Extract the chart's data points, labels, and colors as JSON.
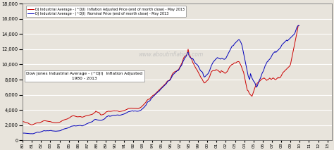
{
  "title_annotation": "Dow Jones Industrial Average - (^DJI)  Inflation Adjusted\n1980 - 2013",
  "watermark": "www.aboutinflation.com",
  "legend_red": "DJ Industrial Average - (^DJI)  Inflation Adjusted Price (end of month close) - May 2013",
  "legend_blue": "DJ Industrial Average - (^DJI)  Nominal Price (end of month close) - May 2013",
  "line_red": "#cc0000",
  "line_blue": "#0000bb",
  "bg_color": "#e8e4dc",
  "ylim": [
    0,
    18000
  ],
  "yticks": [
    0,
    2000,
    4000,
    6000,
    8000,
    10000,
    12000,
    14000,
    16000,
    18000
  ],
  "xlim_start": 1980.0,
  "xlim_end": 2013.5,
  "nominal_monthly": [
    963,
    944,
    950,
    940,
    935,
    921,
    910,
    900,
    880,
    875,
    870,
    875,
    875,
    860,
    880,
    920,
    960,
    1010,
    1040,
    1070,
    1080,
    1047,
    1060,
    1100,
    1130,
    1160,
    1200,
    1250,
    1270,
    1259,
    1240,
    1260,
    1270,
    1250,
    1260,
    1280,
    1290,
    1300,
    1250,
    1240,
    1230,
    1220,
    1210,
    1200,
    1210,
    1212,
    1220,
    1230,
    1250,
    1280,
    1310,
    1390,
    1430,
    1470,
    1500,
    1520,
    1547,
    1580,
    1600,
    1650,
    1680,
    1730,
    1780,
    1850,
    1870,
    1896,
    1910,
    1920,
    1900,
    1890,
    1900,
    1910,
    1930,
    1950,
    1960,
    1970,
    1939,
    1900,
    1920,
    1960,
    1990,
    2040,
    2100,
    2169,
    2200,
    2250,
    2300,
    2350,
    2380,
    2410,
    2440,
    2500,
    2600,
    2700,
    2750,
    2753,
    2720,
    2690,
    2680,
    2650,
    2640,
    2634,
    2640,
    2660,
    2700,
    2750,
    2800,
    2880,
    3000,
    3100,
    3150,
    3200,
    3250,
    3169,
    3180,
    3200,
    3250,
    3280,
    3300,
    3310,
    3280,
    3310,
    3330,
    3340,
    3350,
    3301,
    3310,
    3320,
    3350,
    3380,
    3400,
    3450,
    3480,
    3520,
    3580,
    3630,
    3680,
    3754,
    3780,
    3800,
    3840,
    3860,
    3880,
    3900,
    3840,
    3860,
    3880,
    3860,
    3840,
    3834,
    3840,
    3860,
    3900,
    3950,
    4000,
    4100,
    4180,
    4280,
    4380,
    4500,
    4600,
    4800,
    5000,
    5100,
    5117,
    5200,
    5300,
    5500,
    5600,
    5700,
    5800,
    5900,
    6000,
    6100,
    6200,
    6300,
    6400,
    6448,
    6550,
    6700,
    6800,
    6900,
    7000,
    7100,
    7200,
    7300,
    7400,
    7500,
    7700,
    7800,
    7850,
    7908,
    8000,
    8200,
    8400,
    8600,
    8700,
    8800,
    8900,
    9000,
    9100,
    9200,
    9181,
    9300,
    9500,
    9700,
    9800,
    10000,
    10300,
    10500,
    10700,
    10900,
    11000,
    11200,
    11497,
    11600,
    11200,
    11000,
    10900,
    10800,
    10700,
    10787,
    10600,
    10400,
    10200,
    10100,
    10021,
    9950,
    9800,
    9600,
    9400,
    9200,
    9100,
    9050,
    8900,
    8500,
    8342,
    8400,
    8500,
    8600,
    8700,
    8800,
    9000,
    9200,
    9500,
    9800,
    10000,
    10200,
    10400,
    10454,
    10600,
    10700,
    10800,
    10900,
    10850,
    10800,
    10750,
    10700,
    10783,
    10800,
    10750,
    10700,
    10680,
    10718,
    10800,
    11000,
    11200,
    11400,
    11600,
    11800,
    12000,
    12200,
    12400,
    12463,
    12500,
    12700,
    12800,
    12900,
    13000,
    13100,
    13200,
    13265,
    13200,
    13000,
    12800,
    12500,
    12000,
    11500,
    11000,
    10500,
    10000,
    9500,
    9000,
    8500,
    8200,
    8000,
    8776,
    8500,
    8200,
    8000,
    7800,
    7700,
    7500,
    7200,
    7000,
    7200,
    7500,
    7800,
    8000,
    8200,
    8500,
    8800,
    9000,
    9200,
    9500,
    9800,
    10000,
    10200,
    10400,
    10428,
    10600,
    10700,
    10800,
    11000,
    11200,
    11400,
    11500,
    11600,
    11700,
    11578,
    11700,
    11800,
    11900,
    12000,
    12100,
    12218,
    12400,
    12600,
    12700,
    12800,
    12900,
    13000,
    13100,
    13200,
    13104,
    13200,
    13300,
    13400,
    13500,
    13600,
    13700,
    13800,
    13900,
    14000,
    14200,
    14500,
    14800,
    15000,
    15116,
    15116
  ],
  "inflation_adj_monthly": [
    2508,
    2450,
    2430,
    2380,
    2350,
    2320,
    2300,
    2280,
    2200,
    2150,
    2100,
    2044,
    2044,
    2060,
    2100,
    2150,
    2200,
    2250,
    2280,
    2300,
    2310,
    2289,
    2300,
    2350,
    2400,
    2450,
    2510,
    2560,
    2580,
    2580,
    2560,
    2540,
    2520,
    2500,
    2490,
    2480,
    2460,
    2440,
    2380,
    2360,
    2340,
    2330,
    2320,
    2310,
    2320,
    2330,
    2340,
    2350,
    2380,
    2430,
    2490,
    2560,
    2610,
    2650,
    2700,
    2730,
    2756,
    2790,
    2820,
    2880,
    2920,
    2970,
    3050,
    3140,
    3180,
    3227,
    3230,
    3220,
    3180,
    3160,
    3120,
    3097,
    3100,
    3110,
    3120,
    3130,
    3097,
    3050,
    3060,
    3100,
    3140,
    3180,
    3221,
    3230,
    3250,
    3280,
    3310,
    3350,
    3370,
    3390,
    3410,
    3460,
    3540,
    3620,
    3680,
    3837,
    3780,
    3720,
    3690,
    3640,
    3600,
    3396,
    3340,
    3360,
    3390,
    3420,
    3480,
    3560,
    3680,
    3770,
    3800,
    3830,
    3850,
    3818,
    3820,
    3830,
    3850,
    3870,
    3890,
    3900,
    3870,
    3880,
    3880,
    3870,
    3860,
    3802,
    3800,
    3810,
    3830,
    3850,
    3870,
    3900,
    3930,
    3970,
    4010,
    4060,
    4100,
    4190,
    4200,
    4210,
    4220,
    4230,
    4220,
    4210,
    4190,
    4200,
    4210,
    4200,
    4190,
    4173,
    4180,
    4210,
    4260,
    4320,
    4380,
    4480,
    4580,
    4680,
    4780,
    4900,
    5000,
    5200,
    5300,
    5399,
    5400,
    5450,
    5580,
    5700,
    5800,
    5900,
    5950,
    6000,
    6100,
    6200,
    6300,
    6400,
    6520,
    6618,
    6700,
    6800,
    6900,
    7000,
    7100,
    7200,
    7300,
    7400,
    7500,
    7650,
    7800,
    7850,
    7870,
    7944,
    8100,
    8350,
    8600,
    8800,
    8900,
    9000,
    9050,
    9100,
    9112,
    9200,
    9300,
    9400,
    9600,
    9800,
    10000,
    10200,
    10500,
    10800,
    11000,
    11100,
    11200,
    11217,
    11500,
    12000,
    11500,
    11200,
    11000,
    10800,
    10600,
    10278,
    10100,
    9900,
    9700,
    9500,
    9341,
    9200,
    9000,
    8800,
    8600,
    8400,
    8200,
    8100,
    7900,
    7700,
    7556,
    7600,
    7700,
    7800,
    7900,
    8000,
    8200,
    8400,
    8700,
    9000,
    9100,
    9178,
    9200,
    9178,
    9200,
    9300,
    9300,
    9250,
    9200,
    9100,
    9000,
    8900,
    9183,
    9100,
    9050,
    9000,
    8900,
    8827,
    8900,
    9000,
    9100,
    9300,
    9500,
    9700,
    9800,
    9900,
    10011,
    10011,
    10100,
    10200,
    10200,
    10200,
    10300,
    10350,
    10367,
    10367,
    10200,
    10000,
    9800,
    9500,
    9200,
    9000,
    8500,
    8000,
    7500,
    7000,
    6600,
    6535,
    6300,
    6100,
    6000,
    5900,
    5800,
    6100,
    6400,
    6700,
    7000,
    7200,
    7400,
    7555,
    7600,
    7700,
    7800,
    7900,
    8009,
    8100,
    8100,
    8200,
    8200,
    8100,
    8000,
    7900,
    7977,
    8000,
    8100,
    8200,
    8100,
    8009,
    8100,
    8200,
    8200,
    8100,
    8000,
    8009,
    8100,
    8200,
    8300,
    8200,
    8274,
    8300,
    8500,
    8700,
    8900,
    9000,
    9100,
    9200,
    9300,
    9400,
    9500,
    9600,
    9700,
    9800,
    10000,
    10500,
    11000,
    11500,
    12000,
    12500,
    13000,
    13500,
    14000,
    14500,
    15116,
    15116
  ]
}
